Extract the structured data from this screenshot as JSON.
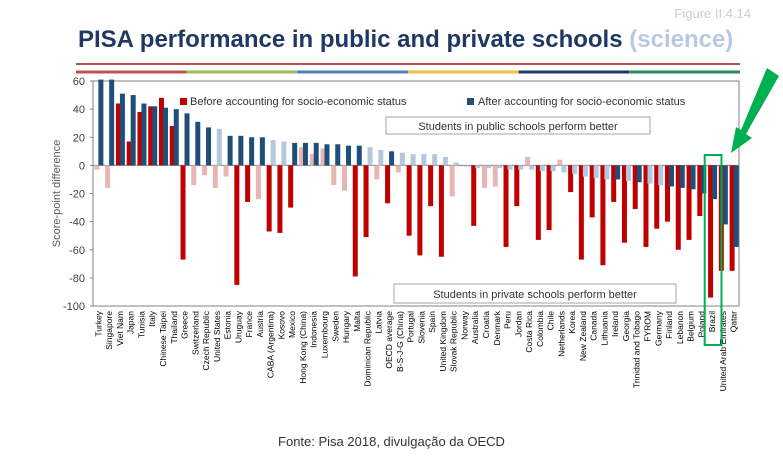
{
  "figure_label": "Figure II.4.14",
  "title_main": "PISA performance in public and private schools ",
  "title_highlight": "(science)",
  "source": "Fonte: Pisa 2018, divulgação da OECD",
  "colors": {
    "before_sig": "#c00000",
    "before_nonsig": "#e8b4b4",
    "after_sig": "#1f4e79",
    "after_nonsig": "#b4c7dc",
    "title": "#1f3864",
    "title_highlight": "#b7c9e2",
    "highlight_box": "#00b050",
    "arrow": "#00b050",
    "rule_red": "#c0504d"
  },
  "chart_data": {
    "type": "bar",
    "title": "PISA performance in public and private schools (science)",
    "ylabel": "Score-point difference",
    "ylim": [
      -100,
      60
    ],
    "yticks": [
      60,
      40,
      20,
      0,
      -20,
      -40,
      -60,
      -80,
      -100
    ],
    "legend": {
      "placement": "top",
      "before": "Before accounting for socio-economic status",
      "after": "After accounting for socio-economic status"
    },
    "annotations": {
      "public_better": "Students in public schools perform better",
      "private_better": "Students in private schools perform better",
      "highlight": "Brazil"
    },
    "categories": [
      "Turkey",
      "Singapore",
      "Viet Nam",
      "Japan",
      "Tunisia",
      "Italy",
      "Chinese Taipei",
      "Thailand",
      "Greece",
      "Switzerland",
      "Czech Republic",
      "United States",
      "Estonia",
      "Uruguay",
      "France",
      "Austria",
      "CABA (Argentina)",
      "Kosovo",
      "Mexico",
      "Hong Kong (China)",
      "Indonesia",
      "Luxembourg",
      "Sweden",
      "Hungary",
      "Malta",
      "Dominican Republic",
      "Latvia",
      "OECD average",
      "B-S-J-G (China)",
      "Portugal",
      "Slovenia",
      "Spain",
      "United Kingdom",
      "Slovak Republic",
      "Norway",
      "Australia",
      "Croatia",
      "Denmark",
      "Peru",
      "Jordan",
      "Costa Rica",
      "Colombia",
      "Chile",
      "Netherlands",
      "Korea",
      "New Zealand",
      "Canada",
      "Lithuania",
      "Ireland",
      "Georgia",
      "Trinidad and Tobago",
      "FYROM",
      "Germany",
      "Finland",
      "Lebanon",
      "Belgium",
      "Poland",
      "Brazil",
      "United Arab Emirates",
      "Qatar"
    ],
    "series": [
      {
        "name": "Before accounting for socio-economic status",
        "values": [
          -3,
          -16,
          44,
          17,
          38,
          42,
          48,
          28,
          -67,
          -14,
          -7,
          -16,
          -8,
          -85,
          -26,
          -24,
          -47,
          -48,
          -30,
          13,
          8,
          12,
          -14,
          -18,
          -79,
          -51,
          -10,
          -27,
          -5,
          -50,
          -64,
          -29,
          -65,
          -22,
          0,
          -43,
          -16,
          -15,
          -58,
          -29,
          6,
          -53,
          -46,
          4,
          -19,
          -67,
          -37,
          -71,
          -26,
          -55,
          -31,
          -58,
          -45,
          -40,
          -60,
          -53,
          -36,
          -94,
          -75,
          -75
        ],
        "significant": [
          false,
          false,
          true,
          true,
          true,
          true,
          true,
          true,
          true,
          false,
          false,
          false,
          false,
          true,
          true,
          false,
          true,
          true,
          true,
          false,
          false,
          false,
          false,
          false,
          true,
          true,
          false,
          true,
          false,
          true,
          true,
          true,
          true,
          false,
          false,
          true,
          false,
          false,
          true,
          true,
          false,
          true,
          true,
          false,
          true,
          true,
          true,
          true,
          true,
          true,
          true,
          true,
          true,
          true,
          true,
          true,
          true,
          true,
          true,
          true
        ]
      },
      {
        "name": "After accounting for socio-economic status",
        "values": [
          61,
          61,
          51,
          50,
          44,
          42,
          41,
          40,
          37,
          31,
          27,
          26,
          21,
          21,
          20,
          20,
          18,
          17,
          16,
          16,
          16,
          15,
          15,
          14,
          14,
          13,
          11,
          10,
          9,
          8,
          8,
          8,
          6,
          2,
          -1,
          -2,
          -2,
          -2,
          -3,
          -3,
          -3,
          -4,
          -4,
          -5,
          -6,
          -8,
          -9,
          -10,
          -10,
          -11,
          -12,
          -13,
          -14,
          -15,
          -16,
          -17,
          -20,
          -24,
          -42,
          -58
        ],
        "significant": [
          true,
          true,
          true,
          true,
          true,
          true,
          true,
          true,
          true,
          true,
          true,
          false,
          true,
          true,
          true,
          true,
          false,
          false,
          true,
          true,
          true,
          true,
          true,
          true,
          true,
          false,
          false,
          true,
          false,
          false,
          false,
          false,
          false,
          false,
          false,
          false,
          false,
          false,
          false,
          false,
          false,
          false,
          false,
          false,
          false,
          false,
          false,
          false,
          true,
          false,
          true,
          false,
          false,
          true,
          true,
          true,
          true,
          true,
          true,
          true
        ]
      }
    ]
  }
}
